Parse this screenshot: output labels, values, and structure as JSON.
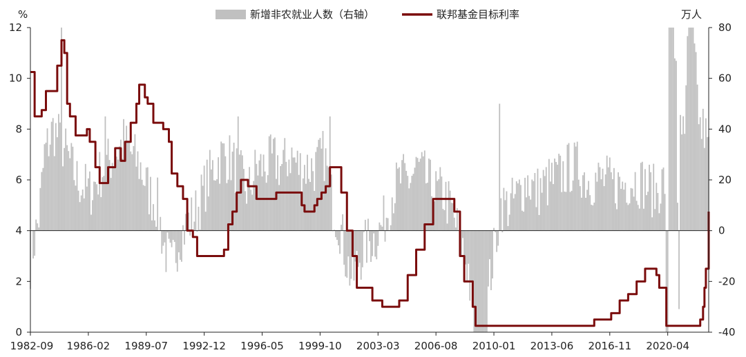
{
  "chart_data": {
    "type": "bar+line",
    "left_unit": "%",
    "right_unit": "万人",
    "legend": {
      "bar_label": "新增非农就业人数（右轴）",
      "line_label": "联邦基金目标利率"
    },
    "colors": {
      "bars": "#c0c0c0",
      "line": "#7a0c0c",
      "axis": "#222222"
    },
    "x_ticks": [
      "1982-09",
      "1986-02",
      "1989-07",
      "1992-12",
      "1996-05",
      "1999-10",
      "2003-03",
      "2006-08",
      "2010-01",
      "2013-06",
      "2016-11",
      "2020-04"
    ],
    "x_range": [
      "1982-09",
      "2022-09"
    ],
    "left_axis": {
      "range": [
        0,
        12
      ],
      "ticks": [
        0,
        2,
        4,
        6,
        8,
        10,
        12
      ]
    },
    "right_axis": {
      "range": [
        -40,
        80
      ],
      "ticks": [
        -40,
        -20,
        0,
        20,
        40,
        60,
        80
      ]
    },
    "series": [
      {
        "name": "联邦基金目标利率",
        "axis": "left",
        "kind": "step-line",
        "points": [
          [
            "1982-09",
            10.25
          ],
          [
            "1982-12",
            8.5
          ],
          [
            "1983-05",
            8.75
          ],
          [
            "1983-08",
            9.5
          ],
          [
            "1984-01",
            9.5
          ],
          [
            "1984-04",
            10.5
          ],
          [
            "1984-07",
            11.5
          ],
          [
            "1984-09",
            11.0
          ],
          [
            "1984-11",
            9.0
          ],
          [
            "1985-01",
            8.5
          ],
          [
            "1985-05",
            7.75
          ],
          [
            "1986-01",
            8.0
          ],
          [
            "1986-03",
            7.5
          ],
          [
            "1986-07",
            6.5
          ],
          [
            "1986-10",
            5.875
          ],
          [
            "1987-04",
            6.5
          ],
          [
            "1987-09",
            7.25
          ],
          [
            "1988-01",
            6.75
          ],
          [
            "1988-04",
            7.5
          ],
          [
            "1988-08",
            8.25
          ],
          [
            "1988-12",
            9.0
          ],
          [
            "1989-02",
            9.75
          ],
          [
            "1989-06",
            9.25
          ],
          [
            "1989-08",
            9.0
          ],
          [
            "1989-12",
            8.25
          ],
          [
            "1990-07",
            8.0
          ],
          [
            "1990-11",
            7.5
          ],
          [
            "1991-01",
            6.25
          ],
          [
            "1991-05",
            5.75
          ],
          [
            "1991-09",
            5.25
          ],
          [
            "1991-12",
            4.0
          ],
          [
            "1992-04",
            3.75
          ],
          [
            "1992-07",
            3.0
          ],
          [
            "1994-02",
            3.25
          ],
          [
            "1994-05",
            4.25
          ],
          [
            "1994-08",
            4.75
          ],
          [
            "1994-11",
            5.5
          ],
          [
            "1995-02",
            6.0
          ],
          [
            "1995-07",
            5.75
          ],
          [
            "1996-01",
            5.25
          ],
          [
            "1997-03",
            5.5
          ],
          [
            "1998-09",
            5.0
          ],
          [
            "1998-11",
            4.75
          ],
          [
            "1999-06",
            5.0
          ],
          [
            "1999-08",
            5.25
          ],
          [
            "1999-11",
            5.5
          ],
          [
            "2000-02",
            5.75
          ],
          [
            "2000-05",
            6.5
          ],
          [
            "2001-01",
            5.5
          ],
          [
            "2001-05",
            4.0
          ],
          [
            "2001-09",
            3.0
          ],
          [
            "2001-12",
            1.75
          ],
          [
            "2002-11",
            1.25
          ],
          [
            "2003-06",
            1.0
          ],
          [
            "2004-06",
            1.25
          ],
          [
            "2004-12",
            2.25
          ],
          [
            "2005-06",
            3.25
          ],
          [
            "2005-12",
            4.25
          ],
          [
            "2006-06",
            5.25
          ],
          [
            "2007-09",
            4.75
          ],
          [
            "2008-01",
            3.0
          ],
          [
            "2008-04",
            2.0
          ],
          [
            "2008-10",
            1.0
          ],
          [
            "2008-12",
            0.25
          ],
          [
            "2015-12",
            0.5
          ],
          [
            "2016-12",
            0.75
          ],
          [
            "2017-06",
            1.25
          ],
          [
            "2017-12",
            1.5
          ],
          [
            "2018-06",
            2.0
          ],
          [
            "2018-12",
            2.5
          ],
          [
            "2019-08",
            2.25
          ],
          [
            "2019-10",
            1.75
          ],
          [
            "2020-03",
            0.25
          ],
          [
            "2022-03",
            0.5
          ],
          [
            "2022-05",
            1.0
          ],
          [
            "2022-06",
            1.75
          ],
          [
            "2022-07",
            2.5
          ],
          [
            "2022-09",
            4.75
          ]
        ]
      },
      {
        "name": "新增非农就业人数（右轴）",
        "axis": "right",
        "kind": "monthly-bars",
        "anchors": [
          [
            "1982-09",
            -12
          ],
          [
            "1983-03",
            5
          ],
          [
            "1983-07",
            30
          ],
          [
            "1984-01",
            40
          ],
          [
            "1984-07",
            35
          ],
          [
            "1985-06",
            20
          ],
          [
            "1986-03",
            15
          ],
          [
            "1987-01",
            25
          ],
          [
            "1987-09",
            30
          ],
          [
            "1988-03",
            35
          ],
          [
            "1988-09",
            30
          ],
          [
            "1989-03",
            25
          ],
          [
            "1989-09",
            15
          ],
          [
            "1990-03",
            10
          ],
          [
            "1990-07",
            -5
          ],
          [
            "1991-01",
            -15
          ],
          [
            "1991-06",
            -3
          ],
          [
            "1992-01",
            3
          ],
          [
            "1992-07",
            8
          ],
          [
            "1993-01",
            18
          ],
          [
            "1993-07",
            25
          ],
          [
            "1994-01",
            30
          ],
          [
            "1994-07",
            28
          ],
          [
            "1995-01",
            22
          ],
          [
            "1995-07",
            15
          ],
          [
            "1996-01",
            25
          ],
          [
            "1996-07",
            25
          ],
          [
            "1997-01",
            28
          ],
          [
            "1997-07",
            25
          ],
          [
            "1998-01",
            30
          ],
          [
            "1998-07",
            25
          ],
          [
            "1999-01",
            25
          ],
          [
            "1999-07",
            25
          ],
          [
            "2000-01",
            30
          ],
          [
            "2000-07",
            10
          ],
          [
            "2001-01",
            0
          ],
          [
            "2001-04",
            -10
          ],
          [
            "2001-09",
            -20
          ],
          [
            "2002-01",
            -12
          ],
          [
            "2002-07",
            -5
          ],
          [
            "2003-01",
            -3
          ],
          [
            "2003-07",
            3
          ],
          [
            "2004-01",
            15
          ],
          [
            "2004-07",
            20
          ],
          [
            "2005-01",
            20
          ],
          [
            "2005-07",
            25
          ],
          [
            "2006-01",
            20
          ],
          [
            "2006-07",
            15
          ],
          [
            "2007-01",
            15
          ],
          [
            "2007-07",
            8
          ],
          [
            "2008-01",
            -3
          ],
          [
            "2008-07",
            -15
          ],
          [
            "2008-10",
            -35
          ],
          [
            "2009-01",
            -70
          ],
          [
            "2009-06",
            -45
          ],
          [
            "2009-10",
            -20
          ],
          [
            "2010-02",
            -5
          ],
          [
            "2010-06",
            10
          ],
          [
            "2011-01",
            10
          ],
          [
            "2011-07",
            15
          ],
          [
            "2012-01",
            20
          ],
          [
            "2012-07",
            15
          ],
          [
            "2013-01",
            18
          ],
          [
            "2013-07",
            20
          ],
          [
            "2014-01",
            22
          ],
          [
            "2014-07",
            25
          ],
          [
            "2015-01",
            25
          ],
          [
            "2015-07",
            20
          ],
          [
            "2016-01",
            20
          ],
          [
            "2016-07",
            20
          ],
          [
            "2017-01",
            18
          ],
          [
            "2017-07",
            18
          ],
          [
            "2018-01",
            20
          ],
          [
            "2018-07",
            20
          ],
          [
            "2019-01",
            18
          ],
          [
            "2019-07",
            15
          ],
          [
            "2020-02",
            20
          ],
          [
            "2020-03",
            -140
          ],
          [
            "2020-04",
            -2050
          ],
          [
            "2020-05",
            270
          ],
          [
            "2020-06",
            480
          ],
          [
            "2020-07",
            170
          ],
          [
            "2020-08",
            150
          ],
          [
            "2020-10",
            60
          ],
          [
            "2020-12",
            -30
          ],
          [
            "2021-01",
            50
          ],
          [
            "2021-04",
            30
          ],
          [
            "2021-07",
            100
          ],
          [
            "2021-12",
            60
          ],
          [
            "2022-03",
            40
          ],
          [
            "2022-06",
            40
          ],
          [
            "2022-09",
            30
          ]
        ],
        "extra_spikes": [
          [
            "1984-07",
            80
          ],
          [
            "1987-02",
            45
          ],
          [
            "1994-12",
            45
          ],
          [
            "2010-05",
            50
          ],
          [
            "2000-05",
            45
          ],
          [
            "2021-07",
            80
          ]
        ]
      }
    ]
  }
}
